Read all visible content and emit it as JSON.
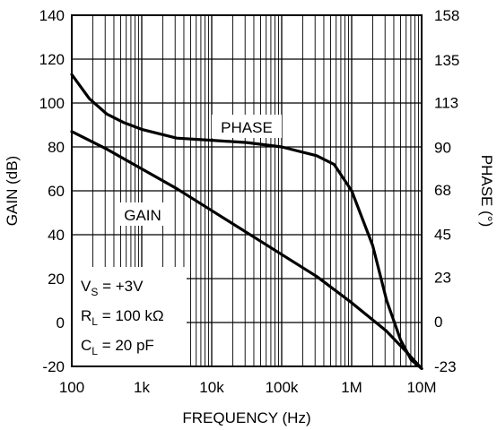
{
  "chart_data": {
    "type": "line",
    "xlabel": "FREQUENCY (Hz)",
    "ylabel": "GAIN (dB)",
    "y2label": "PHASE (°)",
    "xscale": "log",
    "xlim": [
      100,
      10000000
    ],
    "ylim": [
      -20,
      140
    ],
    "y2lim": [
      -23,
      158
    ],
    "grid": true,
    "x_ticks": [
      100,
      1000,
      10000,
      100000,
      1000000,
      10000000
    ],
    "x_tick_labels": [
      "100",
      "1k",
      "10k",
      "100k",
      "1M",
      "10M"
    ],
    "y_ticks": [
      140,
      120,
      100,
      80,
      60,
      40,
      20,
      0,
      -20
    ],
    "y_tick_labels": [
      "140",
      "120",
      "100",
      "80",
      "60",
      "40",
      "20",
      "0",
      "-20"
    ],
    "y2_ticks": [
      158,
      135,
      113,
      90,
      68,
      45,
      23,
      0,
      -23
    ],
    "y2_tick_labels": [
      "158",
      "135",
      "113",
      "90",
      "68",
      "45",
      "23",
      "0",
      "-23"
    ],
    "series": [
      {
        "name": "GAIN",
        "axis": "left",
        "points": [
          [
            100,
            87
          ],
          [
            316,
            79
          ],
          [
            1000,
            70
          ],
          [
            3162,
            61
          ],
          [
            10000,
            51
          ],
          [
            31623,
            41
          ],
          [
            100000,
            31
          ],
          [
            316228,
            21
          ],
          [
            1000000,
            9
          ],
          [
            3162278,
            -4
          ],
          [
            6309573,
            -14
          ],
          [
            10000000,
            -21
          ]
        ]
      },
      {
        "name": "PHASE",
        "axis": "left",
        "points": [
          [
            100,
            113
          ],
          [
            178,
            102
          ],
          [
            316,
            95
          ],
          [
            562,
            91
          ],
          [
            1000,
            88
          ],
          [
            3162,
            84
          ],
          [
            10000,
            83
          ],
          [
            31623,
            82
          ],
          [
            100000,
            80
          ],
          [
            316228,
            76
          ],
          [
            562341,
            72
          ],
          [
            1000000,
            60
          ],
          [
            2000000,
            35
          ],
          [
            3162278,
            10
          ],
          [
            5011872,
            -8
          ],
          [
            7079458,
            -17
          ],
          [
            10000000,
            -21
          ]
        ]
      }
    ],
    "annotations": {
      "gain_label": "GAIN",
      "phase_label": "PHASE",
      "conditions": [
        {
          "sym": "V",
          "sub": "S",
          "rest": " = +3V"
        },
        {
          "sym": "R",
          "sub": "L",
          "rest": " = 100 kΩ"
        },
        {
          "sym": "C",
          "sub": "L",
          "rest": " = 20 pF"
        }
      ]
    }
  }
}
